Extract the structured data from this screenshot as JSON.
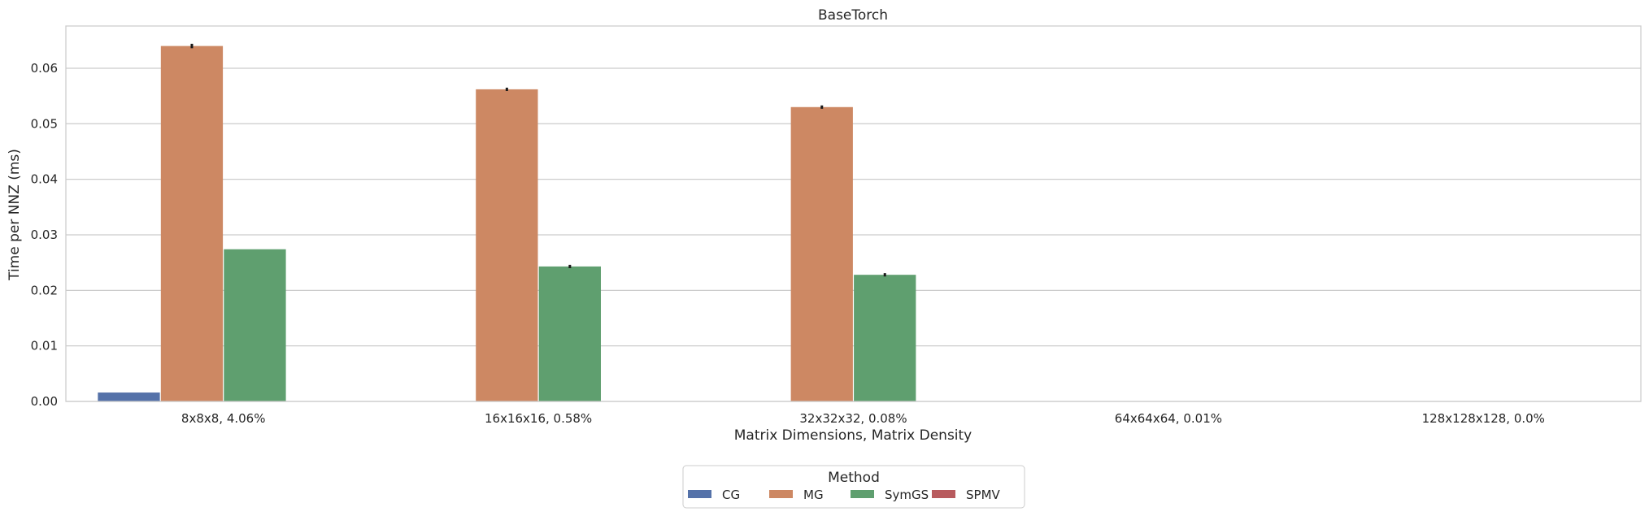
{
  "chart_data": {
    "type": "bar",
    "title": "BaseTorch",
    "xlabel": "Matrix Dimensions, Matrix Density",
    "ylabel": "Time per NNZ (ms)",
    "categories": [
      "8x8x8, 4.06%",
      "16x16x16, 0.58%",
      "32x32x32, 0.08%",
      "64x64x64, 0.01%",
      "128x128x128, 0.0%"
    ],
    "yticks": [
      "0.00",
      "0.01",
      "0.02",
      "0.03",
      "0.04",
      "0.05",
      "0.06"
    ],
    "ylim": [
      0,
      0.0676
    ],
    "grid": "horizontal",
    "legend_title": "Method",
    "legend_placement": "bottom-center",
    "series": [
      {
        "name": "CG",
        "color": "#5572a9",
        "values": [
          0.0016,
          0.0,
          0.0,
          0.0,
          0.0
        ]
      },
      {
        "name": "MG",
        "color": "#cd8863",
        "values": [
          0.064,
          0.0562,
          0.053,
          0.0,
          0.0
        ],
        "errors": [
          0.0004,
          0.0003,
          0.0003,
          0,
          0
        ]
      },
      {
        "name": "SymGS",
        "color": "#5f9f6f",
        "values": [
          0.0274,
          0.0243,
          0.0228,
          0.0,
          0.0
        ],
        "errors": [
          0.0,
          0.0003,
          0.0003,
          0,
          0
        ]
      },
      {
        "name": "SPMV",
        "color": "#b85b5e",
        "values": [
          0.0,
          0.0,
          0.0,
          0.0,
          0.0
        ]
      }
    ]
  }
}
